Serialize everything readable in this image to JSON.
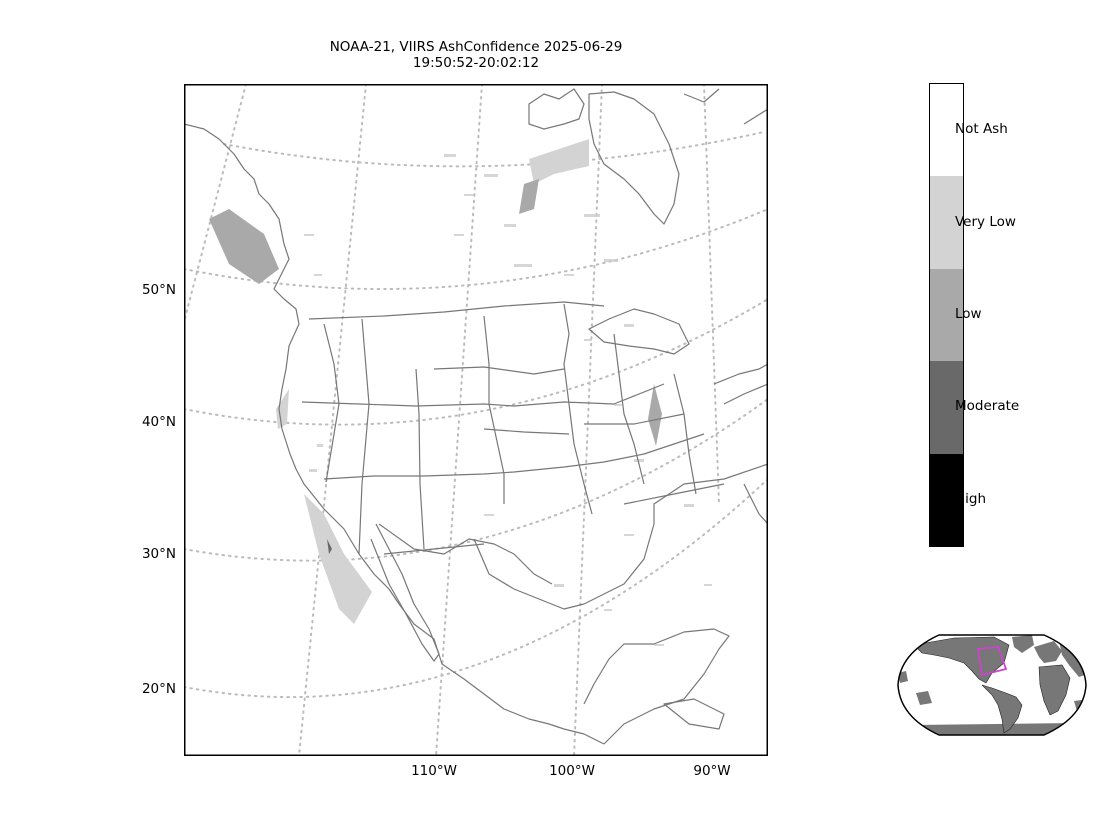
{
  "title": {
    "line1": "NOAA-21, VIIRS AshConfidence 2025-06-29",
    "line2": "19:50:52-20:02:12"
  },
  "map": {
    "projection": "conic",
    "gridline_style": "dotted",
    "gridline_color": "#bbbbbb",
    "coastline_color": "#777777",
    "lat_labels": [
      "50°N",
      "40°N",
      "30°N",
      "20°N"
    ],
    "lon_labels": [
      "110°W",
      "100°W",
      "90°W"
    ],
    "ash_color_scale": [
      "#ffffff",
      "#d3d3d3",
      "#a9a9a9",
      "#696969",
      "#000000"
    ]
  },
  "colorbar": {
    "categories": [
      {
        "label": "Not Ash",
        "color": "#ffffff"
      },
      {
        "label": "Very Low",
        "color": "#d3d3d3"
      },
      {
        "label": "Low",
        "color": "#a9a9a9"
      },
      {
        "label": "Moderate",
        "color": "#696969"
      },
      {
        "label": "High",
        "color": "#000000"
      }
    ]
  },
  "inset": {
    "description_region_color": "#cc44cc",
    "land_color": "#777777"
  }
}
